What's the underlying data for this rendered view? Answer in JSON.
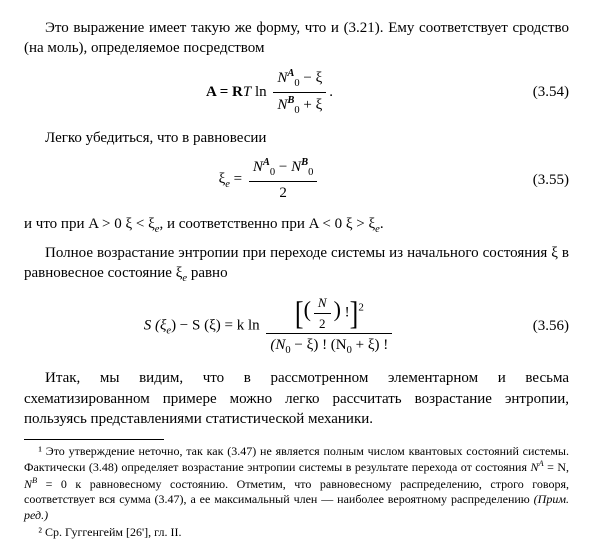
{
  "para1": "Это выражение имеет такую же форму, что и (3.21). Ему соответствует сродство (на моль), определяемое посредством",
  "eq354": {
    "lhs": "A = R",
    "T": "T",
    "ln": " ln ",
    "num_a": "N",
    "num_a_sup": "A",
    "num_a_sub": "0",
    "minus": " − ξ",
    "den_b": "N",
    "den_b_sup": "B",
    "den_b_sub": "0",
    "plus": " + ξ",
    "period": ".",
    "label": "(3.54)"
  },
  "para2": "Легко убедиться, что в равновесии",
  "eq355": {
    "lhs": "ξ",
    "lhs_sub": "e",
    "eq": " = ",
    "num_a": "N",
    "num_a_sup": "A",
    "num_a_sub": "0",
    "minus": " − ",
    "num_b": "N",
    "num_b_sup": "B",
    "num_b_sub": "0",
    "den": "2",
    "label": "(3.55)"
  },
  "para3_a": "и что при A > 0  ξ < ξ",
  "para3_b": ", и соответственно при A < 0  ξ > ξ",
  "para3_sub": "e",
  "para3_end": ".",
  "para4": "Полное возрастание энтропии при переходе системы из начального состояния ξ в равновесное состояние ξ",
  "para4_sub": "e",
  "para4_end": " равно",
  "eq356": {
    "lhs_a": "S (ξ",
    "lhs_a_sub": "e",
    "lhs_b": ") − S (ξ) = k ln ",
    "num_inner_N": "N",
    "num_inner_2": "2",
    "num_bang": " !",
    "num_sq": "2",
    "den_a": "(N",
    "den_a_sub": "0",
    "den_b": " − ξ) ! (N",
    "den_b_sub": "0",
    "den_c": " + ξ) !",
    "label": "(3.56)"
  },
  "para5": "Итак, мы видим, что в рассмотренном элементарном и весьма схематизированном примере можно легко рассчитать возрастание энтропии, пользуясь представлениями статистической механики.",
  "fn1_a": "¹ Это утверждение неточно, так как (3.47) не является полным числом квантовых состояний системы. Фактически (3.48) определяет возрастание энтропии системы в результате перехода от состояния ",
  "fn1_na": "N",
  "fn1_na_sup": "A",
  "fn1_mid1": " = N, ",
  "fn1_nb": "N",
  "fn1_nb_sup": "B",
  "fn1_mid2": " = 0 к равновесному состоянию. Отметим, что равновесному распределению, строго говоря, соответствует вся сумма (3.47), а ее максимальный член — наиболее вероятному распределению ",
  "fn1_note": "(Прим. ред.)",
  "fn2": "² Ср. Гуггенгейм [26'], гл. II."
}
